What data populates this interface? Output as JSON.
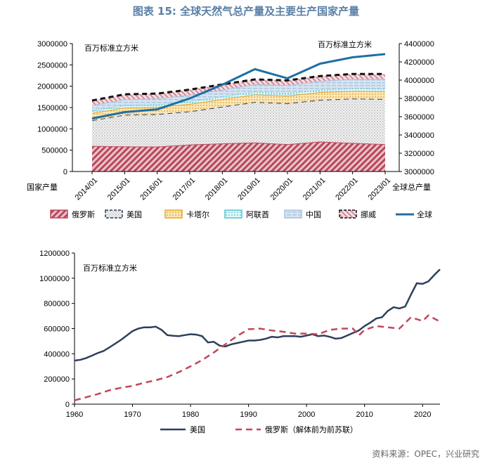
{
  "title": "图表 15: 全球天然气总产量及主要生产国家产量",
  "source": "资料来源：OPEC，兴业研究",
  "colors": {
    "russia": "#c0475a",
    "usa": "#2e3f5c",
    "qatar": "#e5a72a",
    "uae": "#4fc6d4",
    "china": "#a9c4de",
    "norway": "#111111",
    "global": "#1f6fa3",
    "title": "#5a7fa6"
  },
  "chart_data": [
    {
      "type": "area",
      "title": "",
      "unit_left": "百万标准立方米",
      "unit_right": "百万标准立方米",
      "xlabel_left": "国家产量",
      "xlabel_right": "全球总产量",
      "categories": [
        "2014/01",
        "2015/01",
        "2016/01",
        "2017/01",
        "2018/01",
        "2019/01",
        "2020/01",
        "2021/01",
        "2022/01",
        "2023/01"
      ],
      "ylim_left": [
        0,
        3000000
      ],
      "yticks_left": [
        0,
        500000,
        1000000,
        1500000,
        2000000,
        2500000,
        3000000
      ],
      "ylim_right": [
        3000000,
        4400000
      ],
      "yticks_right": [
        3000000,
        3200000,
        3400000,
        3600000,
        3800000,
        4000000,
        4200000,
        4400000
      ],
      "series": [
        {
          "name": "俄罗斯",
          "key": "russia",
          "values": [
            600000,
            590000,
            585000,
            630000,
            660000,
            680000,
            640000,
            700000,
            670000,
            640000
          ]
        },
        {
          "name": "美国",
          "key": "usa",
          "values": [
            600000,
            740000,
            760000,
            780000,
            860000,
            950000,
            960000,
            980000,
            1040000,
            1060000
          ]
        },
        {
          "name": "卡塔尔",
          "key": "qatar",
          "values": [
            170000,
            170000,
            170000,
            175000,
            175000,
            178000,
            178000,
            180000,
            180000,
            180000
          ]
        },
        {
          "name": "阿联酋",
          "key": "uae",
          "values": [
            55000,
            55000,
            58000,
            60000,
            62000,
            62000,
            58000,
            58000,
            58000,
            58000
          ]
        },
        {
          "name": "中国",
          "key": "china",
          "values": [
            130000,
            135000,
            140000,
            150000,
            160000,
            175000,
            190000,
            205000,
            220000,
            232000
          ]
        },
        {
          "name": "挪威",
          "key": "norway",
          "values": [
            110000,
            120000,
            115000,
            125000,
            125000,
            115000,
            110000,
            115000,
            120000,
            116000
          ]
        }
      ],
      "right_series": {
        "name": "全球",
        "key": "global",
        "values": [
          3580000,
          3650000,
          3680000,
          3800000,
          3950000,
          4120000,
          4020000,
          4180000,
          4250000,
          4285000
        ]
      }
    },
    {
      "type": "line",
      "title": "",
      "unit": "百万标准立方米",
      "xlim": [
        1960,
        2023
      ],
      "xticks": [
        1960,
        1970,
        1980,
        1990,
        2000,
        2010,
        2020
      ],
      "ylim": [
        0,
        1200000
      ],
      "yticks": [
        0,
        200000,
        400000,
        600000,
        800000,
        1000000,
        1200000
      ],
      "series": [
        {
          "name": "美国",
          "key": "usa",
          "x": [
            1960,
            1961,
            1962,
            1963,
            1964,
            1965,
            1966,
            1967,
            1968,
            1969,
            1970,
            1971,
            1972,
            1973,
            1974,
            1975,
            1976,
            1977,
            1978,
            1979,
            1980,
            1981,
            1982,
            1983,
            1984,
            1985,
            1986,
            1987,
            1988,
            1989,
            1990,
            1991,
            1992,
            1993,
            1994,
            1995,
            1996,
            1997,
            1998,
            1999,
            2000,
            2001,
            2002,
            2003,
            2004,
            2005,
            2006,
            2007,
            2008,
            2009,
            2010,
            2011,
            2012,
            2013,
            2014,
            2015,
            2016,
            2017,
            2018,
            2019,
            2020,
            2021,
            2022,
            2023
          ],
          "values": [
            346000,
            352000,
            366000,
            385000,
            406000,
            422000,
            450000,
            480000,
            510000,
            545000,
            580000,
            600000,
            610000,
            610000,
            615000,
            590000,
            548000,
            543000,
            540000,
            548000,
            555000,
            552000,
            540000,
            490000,
            495000,
            465000,
            458000,
            475000,
            485000,
            495000,
            505000,
            505000,
            510000,
            520000,
            535000,
            530000,
            540000,
            540000,
            540000,
            535000,
            545000,
            555000,
            540000,
            545000,
            535000,
            520000,
            525000,
            545000,
            565000,
            585000,
            620000,
            648000,
            680000,
            690000,
            740000,
            770000,
            760000,
            775000,
            870000,
            960000,
            955000,
            975000,
            1025000,
            1070000
          ]
        },
        {
          "name": "俄罗斯（解体前为前苏联）",
          "key": "russia",
          "x": [
            1960,
            1962,
            1964,
            1966,
            1968,
            1970,
            1972,
            1974,
            1976,
            1978,
            1980,
            1982,
            1984,
            1986,
            1988,
            1990,
            1992,
            1994,
            1996,
            1998,
            2000,
            2002,
            2004,
            2006,
            2008,
            2009,
            2010,
            2012,
            2014,
            2016,
            2018,
            2020,
            2021,
            2023
          ],
          "values": [
            30000,
            55000,
            80000,
            110000,
            130000,
            145000,
            170000,
            190000,
            215000,
            255000,
            300000,
            350000,
            410000,
            475000,
            540000,
            595000,
            600000,
            585000,
            575000,
            560000,
            560000,
            555000,
            590000,
            600000,
            600000,
            545000,
            590000,
            620000,
            610000,
            600000,
            690000,
            660000,
            705000,
            655000
          ]
        }
      ]
    }
  ]
}
